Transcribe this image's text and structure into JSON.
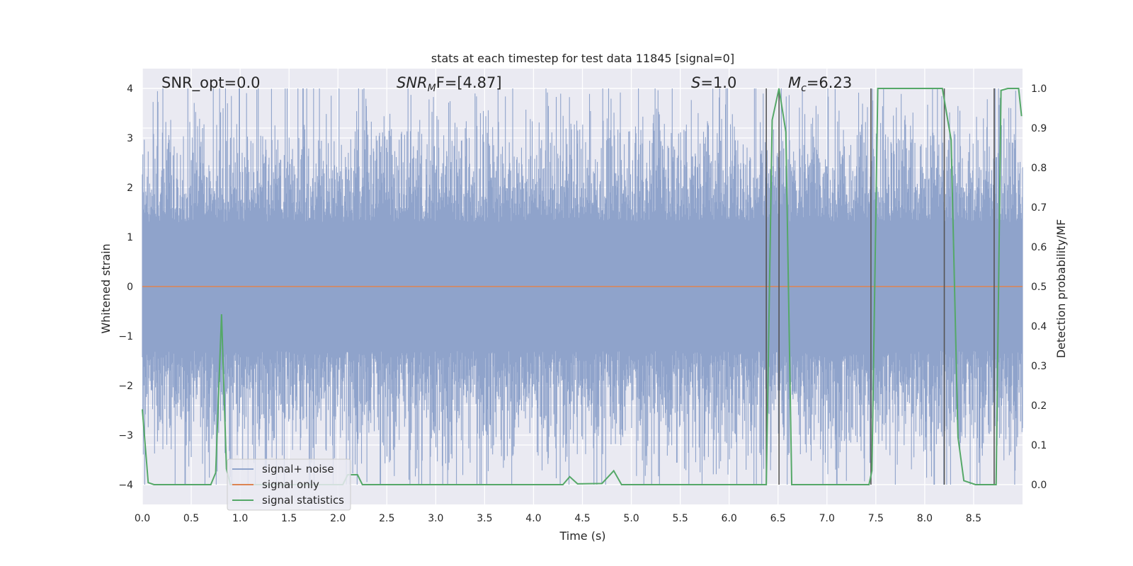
{
  "chart_data": {
    "type": "line",
    "title": "stats at each timestep for test data 11845 [signal=0]",
    "xlabel": "Time (s)",
    "ylabel": "Whitened strain",
    "ylabel_right": "Detection probability/MF",
    "xlim": [
      0.0,
      9.0
    ],
    "ylim_left": [
      -4.4,
      4.4
    ],
    "ylim_right": [
      -0.05,
      1.05
    ],
    "xticks": [
      "0.0",
      "0.5",
      "1.0",
      "1.5",
      "2.0",
      "2.5",
      "3.0",
      "3.5",
      "4.0",
      "4.5",
      "5.0",
      "5.5",
      "6.0",
      "6.5",
      "7.0",
      "7.5",
      "8.0",
      "8.5"
    ],
    "xtick_values": [
      0.0,
      0.5,
      1.0,
      1.5,
      2.0,
      2.5,
      3.0,
      3.5,
      4.0,
      4.5,
      5.0,
      5.5,
      6.0,
      6.5,
      7.0,
      7.5,
      8.0,
      8.5
    ],
    "yticks_left": [
      "4",
      "3",
      "2",
      "1",
      "0",
      "−1",
      "−2",
      "−3",
      "−4"
    ],
    "ytick_values_left": [
      4,
      3,
      2,
      1,
      0,
      -1,
      -2,
      -3,
      -4
    ],
    "yticks_right": [
      "1.0",
      "0.9",
      "0.8",
      "0.7",
      "0.6",
      "0.5",
      "0.4",
      "0.3",
      "0.2",
      "0.1",
      "0.0"
    ],
    "ytick_values_right": [
      1.0,
      0.9,
      0.8,
      0.7,
      0.6,
      0.5,
      0.4,
      0.3,
      0.2,
      0.1,
      0.0
    ],
    "annotations": {
      "snr_opt": "SNR_opt=0.0",
      "snr_mf_main": "SNR",
      "snr_mf_sub": "M",
      "snr_mf_rest": "F=[4.87]",
      "s_var": "S",
      "s_rest": "=1.0",
      "mc_main": "M",
      "mc_sub": "c",
      "mc_rest": "=6.23"
    },
    "noise_series": {
      "name": "signal+ noise",
      "color": "#8fa3cb",
      "description_range": [
        -4.0,
        4.0
      ],
      "samples": 1800,
      "typical_amplitude": 2.4
    },
    "signal_series": {
      "name": "signal only",
      "color": "#dd8452",
      "value": 0.0
    },
    "stats_series": {
      "name": "signal statistics",
      "color": "#55a868",
      "x": [
        0.0,
        0.06,
        0.12,
        0.7,
        0.75,
        0.81,
        0.86,
        0.9,
        2.05,
        2.1,
        2.2,
        2.25,
        4.3,
        4.37,
        4.45,
        4.7,
        4.82,
        4.9,
        6.38,
        6.44,
        6.51,
        6.58,
        6.64,
        7.43,
        7.46,
        7.52,
        8.18,
        8.27,
        8.34,
        8.4,
        8.52,
        8.73,
        8.78,
        8.85,
        8.96,
        8.99
      ],
      "y": [
        0.19,
        0.005,
        0.0,
        0.0,
        0.03,
        0.43,
        0.04,
        0.0,
        0.0,
        0.025,
        0.025,
        0.0,
        0.0,
        0.02,
        0.002,
        0.003,
        0.035,
        0.0,
        0.0,
        0.92,
        1.0,
        0.89,
        0.0,
        0.0,
        0.035,
        1.0,
        1.0,
        0.87,
        0.12,
        0.01,
        0.0,
        0.0,
        0.995,
        1.0,
        1.0,
        0.93
      ]
    },
    "vertical_markers": {
      "color": "#555555",
      "x": [
        6.38,
        6.51,
        7.45,
        8.2,
        8.71
      ]
    },
    "legend": {
      "position": "lower-left",
      "entries": [
        {
          "label": "signal+ noise",
          "color": "#8fa3cb"
        },
        {
          "label": "signal only",
          "color": "#dd8452"
        },
        {
          "label": "signal statistics",
          "color": "#55a868"
        }
      ]
    },
    "style": {
      "background": "#eaeaf2",
      "grid_color": "#ffffff",
      "grid": true
    }
  }
}
